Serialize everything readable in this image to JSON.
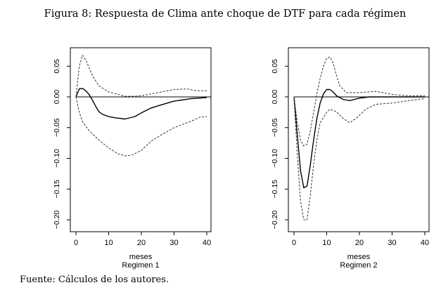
{
  "figure_title": "Figura 8: Respuesta de Clima ante choque de DTF para cada régimen",
  "source_note": "Fuente: Cálculos de los autores.",
  "colors": {
    "line": "#000000",
    "band": "#333333"
  },
  "chart_data": [
    {
      "type": "line",
      "title": "Regimen 1",
      "xlabel": "meses",
      "ylabel": "",
      "xlim": [
        -2,
        41
      ],
      "ylim": [
        -0.22,
        0.085
      ],
      "xticks": [
        "0",
        "10",
        "20",
        "30",
        "40"
      ],
      "yticks": [
        "0.05",
        "0.00",
        "-0.05",
        "-0.10",
        "-0.15",
        "-0.20"
      ],
      "grid": false,
      "series": [
        {
          "name": "respuesta",
          "style": "solid",
          "x": [
            0,
            1,
            2,
            3,
            4,
            5,
            6,
            7,
            8,
            10,
            12,
            15,
            18,
            20,
            23,
            26,
            30,
            35,
            40
          ],
          "y": [
            0,
            0.013,
            0.014,
            0.01,
            0.004,
            -0.005,
            -0.015,
            -0.024,
            -0.028,
            -0.032,
            -0.034,
            -0.036,
            -0.032,
            -0.026,
            -0.018,
            -0.013,
            -0.007,
            -0.003,
            -0.001
          ]
        },
        {
          "name": "banda superior",
          "style": "dashed",
          "x": [
            0,
            1,
            2,
            3,
            5,
            7,
            10,
            13,
            15,
            18,
            20,
            25,
            30,
            34,
            37,
            40
          ],
          "y": [
            0,
            0.05,
            0.068,
            0.06,
            0.035,
            0.018,
            0.008,
            0.004,
            0.001,
            0.001,
            0.002,
            0.007,
            0.012,
            0.013,
            0.01,
            0.01
          ]
        },
        {
          "name": "banda inferior",
          "style": "dashed",
          "x": [
            0,
            1,
            2,
            4,
            7,
            10,
            13,
            15,
            17,
            20,
            23,
            26,
            30,
            35,
            38,
            40
          ],
          "y": [
            0,
            -0.025,
            -0.04,
            -0.055,
            -0.07,
            -0.083,
            -0.093,
            -0.096,
            -0.095,
            -0.087,
            -0.072,
            -0.062,
            -0.05,
            -0.04,
            -0.033,
            -0.032
          ]
        }
      ]
    },
    {
      "type": "line",
      "title": "Regimen 2",
      "xlabel": "meses",
      "ylabel": "",
      "xlim": [
        -2,
        41
      ],
      "ylim": [
        -0.22,
        0.085
      ],
      "xticks": [
        "0",
        "10",
        "20",
        "30",
        "40"
      ],
      "yticks": [
        "0.05",
        "0.00",
        "-0.05",
        "-0.10",
        "-0.15",
        "-0.20"
      ],
      "grid": false,
      "series": [
        {
          "name": "respuesta",
          "style": "solid",
          "x": [
            0,
            1,
            2,
            3,
            4,
            5,
            6,
            7,
            8,
            9,
            10,
            11,
            12,
            13,
            15,
            17,
            20,
            23,
            30,
            40
          ],
          "y": [
            0,
            -0.06,
            -0.12,
            -0.148,
            -0.145,
            -0.11,
            -0.07,
            -0.035,
            -0.01,
            0.005,
            0.012,
            0.012,
            0.008,
            0.002,
            -0.004,
            -0.006,
            -0.002,
            0,
            0,
            0
          ]
        },
        {
          "name": "banda superior",
          "style": "dashed",
          "x": [
            0,
            1,
            2,
            3,
            4,
            5,
            6,
            7,
            8,
            9,
            10,
            11,
            12,
            13,
            14,
            16,
            20,
            25,
            30,
            35,
            40
          ],
          "y": [
            0,
            -0.04,
            -0.07,
            -0.08,
            -0.077,
            -0.055,
            -0.025,
            0.005,
            0.03,
            0.05,
            0.063,
            0.065,
            0.055,
            0.035,
            0.018,
            0.007,
            0.007,
            0.009,
            0.004,
            0.002,
            0.002
          ]
        },
        {
          "name": "banda inferior",
          "style": "dashed",
          "x": [
            0,
            1,
            2,
            3,
            4,
            5,
            6,
            7,
            8,
            10,
            11,
            13,
            15,
            17,
            19,
            22,
            25,
            30,
            35,
            40
          ],
          "y": [
            0,
            -0.09,
            -0.17,
            -0.2,
            -0.2,
            -0.16,
            -0.11,
            -0.07,
            -0.042,
            -0.025,
            -0.02,
            -0.024,
            -0.035,
            -0.042,
            -0.035,
            -0.02,
            -0.012,
            -0.01,
            -0.006,
            -0.003
          ]
        }
      ]
    }
  ]
}
